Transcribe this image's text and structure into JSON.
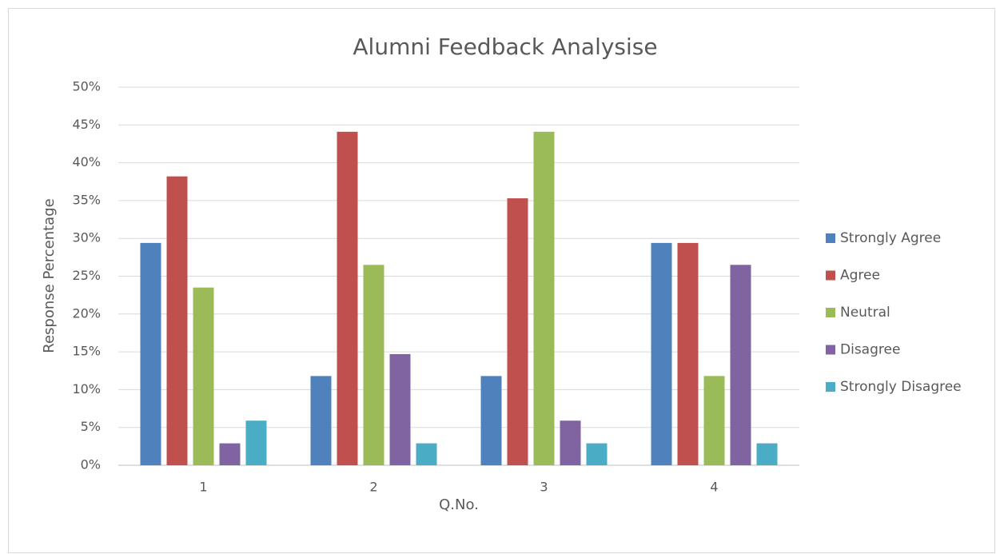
{
  "chart_data": {
    "type": "bar",
    "title": "Alumni Feedback Analysise",
    "x_label": "Q.No.",
    "y_label": "Response Percentage",
    "categories": [
      "1",
      "2",
      "3",
      "4"
    ],
    "series": [
      {
        "name": "Strongly Agree",
        "color": "#4f81bd",
        "values": [
          29.4,
          11.8,
          11.8,
          29.4
        ]
      },
      {
        "name": "Agree",
        "color": "#c0504d",
        "values": [
          38.2,
          44.1,
          35.3,
          29.4
        ]
      },
      {
        "name": "Neutral",
        "color": "#9bbb59",
        "values": [
          23.5,
          26.5,
          44.1,
          11.8
        ]
      },
      {
        "name": "Disagree",
        "color": "#8064a2",
        "values": [
          2.9,
          14.7,
          5.9,
          26.5
        ]
      },
      {
        "name": "Strongly Disagree",
        "color": "#4bacc6",
        "values": [
          5.9,
          2.9,
          2.9,
          2.9
        ]
      }
    ],
    "ylim": [
      0,
      50
    ],
    "yticks": [
      {
        "value": 0,
        "label": "0%"
      },
      {
        "value": 5,
        "label": "5%"
      },
      {
        "value": 10,
        "label": "10%"
      },
      {
        "value": 15,
        "label": "15%"
      },
      {
        "value": 20,
        "label": "20%"
      },
      {
        "value": 25,
        "label": "25%"
      },
      {
        "value": 30,
        "label": "30%"
      },
      {
        "value": 35,
        "label": "35%"
      },
      {
        "value": 40,
        "label": "40%"
      },
      {
        "value": 45,
        "label": "45%"
      },
      {
        "value": 50,
        "label": "50%"
      }
    ],
    "grid": true,
    "legend": "right"
  }
}
